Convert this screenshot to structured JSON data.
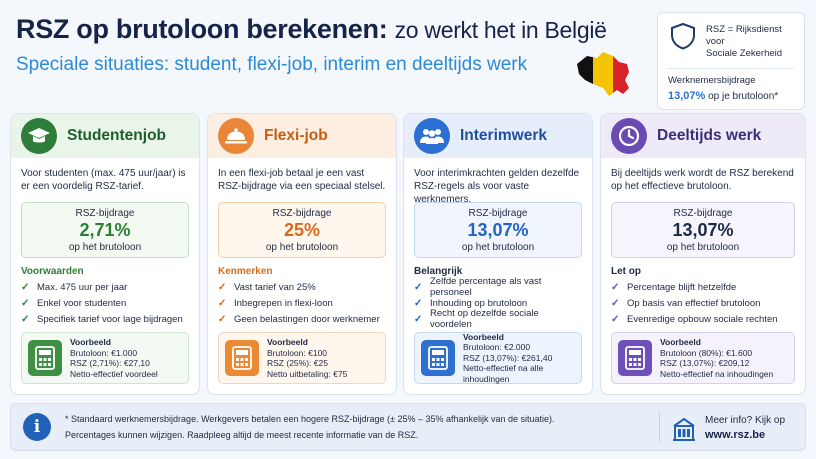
{
  "header": {
    "title_bold": "RSZ op brutoloon berekenen:",
    "title_rest": "zo werkt het in België",
    "subtitle": "Speciale situaties: student, flexi-job, interim en deeltijds werk"
  },
  "info_box": {
    "definition_line1": "RSZ = Rijksdienst voor",
    "definition_line2": "Sociale Zekerheid",
    "label": "Werknemersbijdrage",
    "rate": "13,07%",
    "rate_suffix": "op je brutoloon*"
  },
  "cards": [
    {
      "title": "Studentenjob",
      "icon": "graduation-cap-icon",
      "desc": "Voor studenten (max. 475 uur/jaar) is er een voordelig RSZ-tarief.",
      "rate_label": "RSZ-bijdrage",
      "rate": "2,71%",
      "rate_sub": "op het brutoloon",
      "section": "Voorwaarden",
      "items": [
        "Max. 475 uur per jaar",
        "Enkel voor studenten",
        "Specifiek tarief voor lage bijdragen"
      ],
      "example": [
        "Voorbeeld",
        "Brutoloon: €1.000",
        "RSZ (2,71%): €27,10",
        "Netto-effectief voordeel"
      ]
    },
    {
      "title": "Flexi-job",
      "icon": "cloche-icon",
      "desc": "In een flexi-job betaal je een vast RSZ-bijdrage via een speciaal stelsel.",
      "rate_label": "RSZ-bijdrage",
      "rate": "25%",
      "rate_sub": "op het brutoloon",
      "section": "Kenmerken",
      "items": [
        "Vast tarief van 25%",
        "Inbegrepen in flexi-loon",
        "Geen belastingen door werknemer"
      ],
      "example": [
        "Voorbeeld",
        "Brutoloon: €100",
        "RSZ (25%): €25",
        "Netto uitbetaling: €75"
      ]
    },
    {
      "title": "Interimwerk",
      "icon": "people-icon",
      "desc": "Voor interimkrachten gelden dezelfde RSZ-regels als voor vaste werknemers.",
      "rate_label": "RSZ-bijdrage",
      "rate": "13,07%",
      "rate_sub": "op het brutoloon",
      "section": "Belangrijk",
      "items": [
        "Zelfde percentage als vast personeel",
        "Inhouding op brutoloon",
        "Recht op dezelfde sociale voordelen"
      ],
      "example": [
        "Voorbeeld",
        "Brutoloon: €2.000",
        "RSZ (13,07%): €261,40",
        "Netto-effectief na alle inhoudingen"
      ]
    },
    {
      "title": "Deeltijds werk",
      "icon": "clock-icon",
      "desc": "Bij deeltijds werk wordt de RSZ berekend op het effectieve brutoloon.",
      "rate_label": "RSZ-bijdrage",
      "rate": "13,07%",
      "rate_sub": "op het brutoloon",
      "section": "Let op",
      "items": [
        "Percentage blijft hetzelfde",
        "Op basis van effectief brutoloon",
        "Evenredige opbouw sociale rechten"
      ],
      "example": [
        "Voorbeeld",
        "Brutoloon (80%): €1.600",
        "RSZ (13,07%): €209,12",
        "Netto-effectief na inhoudingen"
      ]
    }
  ],
  "footer": {
    "note1": "* Standaard werknemersbijdrage. Werkgevers betalen een hogere RSZ-bijdrage (± 25% – 35% afhankelijk van de situatie).",
    "note2": "Percentages kunnen wijzigen. Raadpleeg altijd de meest recente informatie van de RSZ.",
    "more_label": "Meer info? Kijk op",
    "url": "www.rsz.be"
  },
  "colors": {
    "student": "#2d7d33",
    "flexi": "#d86a1c",
    "interim": "#2563c4",
    "parttime": "#6a4bb4"
  }
}
